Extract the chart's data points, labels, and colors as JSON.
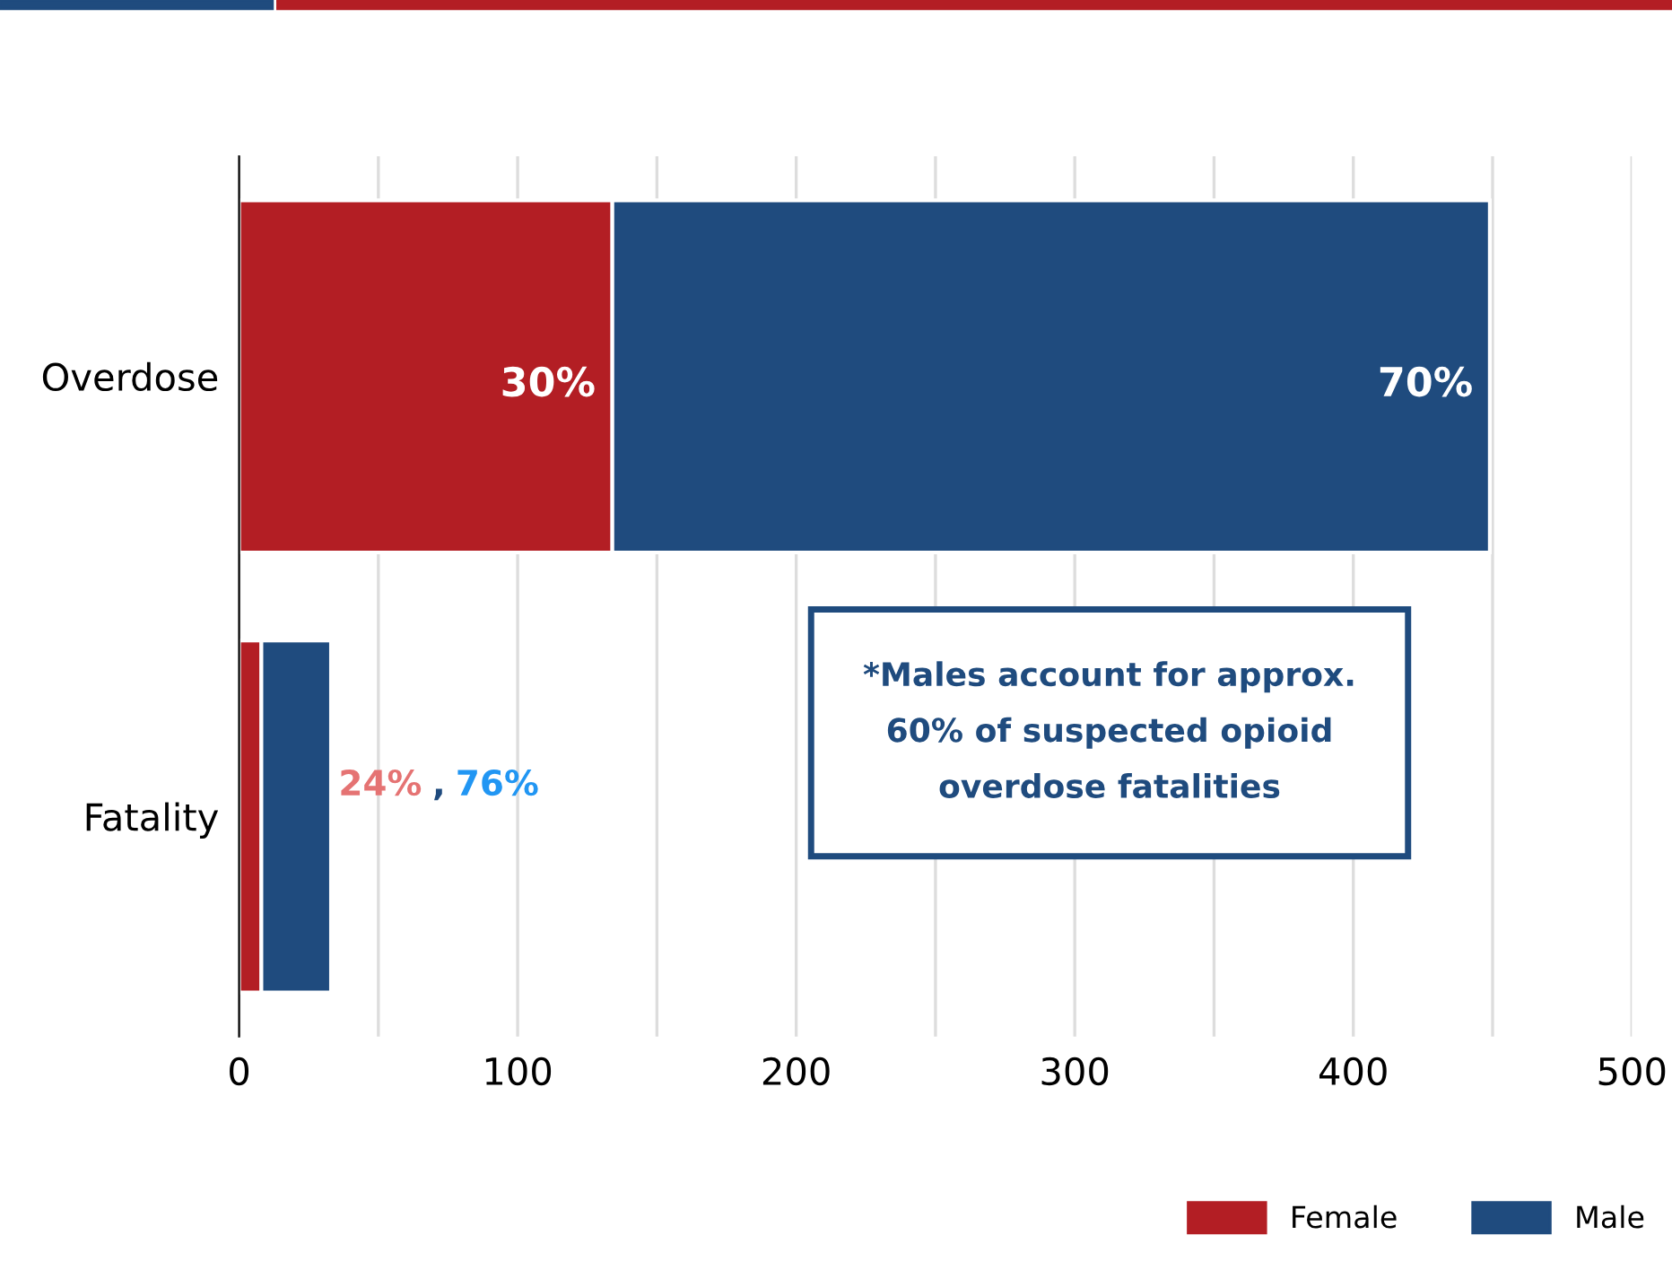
{
  "chart_data": {
    "type": "bar",
    "orientation": "horizontal",
    "stacked": true,
    "categories": [
      "Overdose",
      "Fatality"
    ],
    "series": [
      {
        "name": "Female",
        "color": "#b31e24",
        "values": [
          134,
          8
        ]
      },
      {
        "name": "Male",
        "color": "#1f4b7e",
        "values": [
          315,
          25
        ]
      }
    ],
    "xlim": [
      0,
      500
    ],
    "xticks": [
      0,
      {
        "value": 50,
        "label": null
      },
      100,
      {
        "value": 150,
        "label": null
      },
      200,
      {
        "value": 250,
        "label": null
      },
      300,
      {
        "value": 350,
        "label": null
      },
      400,
      {
        "value": 450,
        "label": null
      },
      500
    ],
    "grid": "x",
    "legend": "bottom right",
    "annotations": [
      "30%",
      "70%",
      "24%",
      ",",
      "76%",
      "*Males account for approx.\n60% of suspected opioid\noverdose fatalities"
    ]
  }
}
